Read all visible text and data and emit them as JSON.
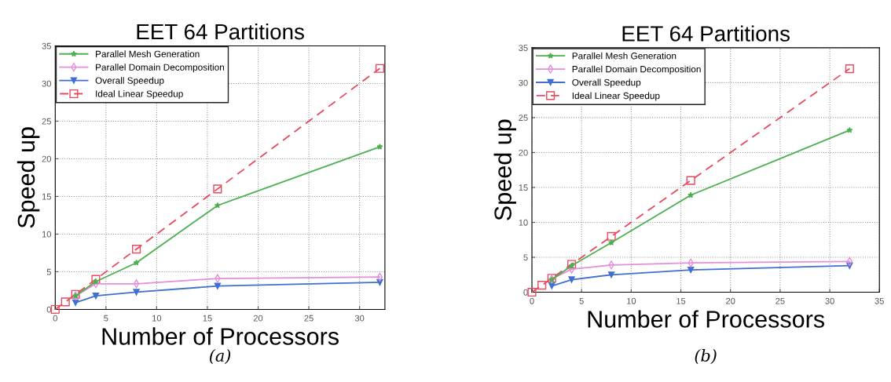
{
  "chart_data": [
    {
      "type": "line",
      "title": "EET 64 Partitions",
      "xlabel": "Number of Processors",
      "ylabel": "Speed up",
      "annotations": [
        "(a)"
      ],
      "xlim": [
        0,
        32.5
      ],
      "ylim": [
        0,
        35
      ],
      "xticks": [
        0,
        5,
        10,
        15,
        20,
        25,
        30
      ],
      "yticks": [
        0,
        5,
        10,
        15,
        20,
        25,
        30,
        35
      ],
      "grid": true,
      "legend": "top left",
      "series": [
        {
          "name": "Parallel Mesh Generation",
          "color": "#4caf50",
          "marker": "star",
          "line_style": "solid",
          "x": [
            2,
            4,
            8,
            16,
            32
          ],
          "values": [
            1.8,
            3.7,
            6.2,
            13.8,
            21.6
          ]
        },
        {
          "name": "Parallel Domain Decomposition",
          "color": "#e58fd8",
          "marker": "diamond",
          "line_style": "solid",
          "x": [
            2,
            4,
            8,
            16,
            32
          ],
          "values": [
            1.8,
            3.4,
            3.4,
            4.1,
            4.3
          ]
        },
        {
          "name": "Overall Speedup",
          "color": "#3f6fd0",
          "marker": "triangle",
          "line_style": "solid",
          "x": [
            2,
            4,
            8,
            16,
            32
          ],
          "values": [
            0.9,
            1.8,
            2.3,
            3.1,
            3.6
          ]
        },
        {
          "name": "Ideal Linear Speedup",
          "color": "#e84a5f",
          "marker": "square",
          "line_style": "dashed",
          "x": [
            0,
            1,
            2,
            4,
            8,
            16,
            32
          ],
          "values": [
            0,
            1,
            2,
            4,
            8,
            16,
            32
          ]
        }
      ]
    },
    {
      "type": "line",
      "title": "EET 64 Partitions",
      "xlabel": "Number of Processors",
      "ylabel": "Speed up",
      "annotations": [
        "(b)"
      ],
      "xlim": [
        0,
        35
      ],
      "ylim": [
        0,
        35
      ],
      "xticks": [
        0,
        5,
        10,
        15,
        20,
        25,
        30,
        35
      ],
      "yticks": [
        0,
        5,
        10,
        15,
        20,
        25,
        30,
        35
      ],
      "grid": true,
      "legend": "top left",
      "series": [
        {
          "name": "Parallel Mesh Generation",
          "color": "#4caf50",
          "marker": "star",
          "line_style": "solid",
          "x": [
            2,
            4,
            8,
            16,
            32
          ],
          "values": [
            1.8,
            3.8,
            7.1,
            13.9,
            23.2
          ]
        },
        {
          "name": "Parallel Domain Decomposition",
          "color": "#e58fd8",
          "marker": "diamond",
          "line_style": "solid",
          "x": [
            2,
            4,
            8,
            16,
            32
          ],
          "values": [
            1.9,
            3.3,
            3.9,
            4.2,
            4.4
          ]
        },
        {
          "name": "Overall Speedup",
          "color": "#3f6fd0",
          "marker": "triangle",
          "line_style": "solid",
          "x": [
            2,
            4,
            8,
            16,
            32
          ],
          "values": [
            0.9,
            1.8,
            2.5,
            3.2,
            3.8
          ]
        },
        {
          "name": "Ideal Linear Speedup",
          "color": "#e84a5f",
          "marker": "square",
          "line_style": "dashed",
          "x": [
            0,
            1,
            2,
            4,
            8,
            16,
            32
          ],
          "values": [
            0,
            1,
            2,
            4,
            8,
            16,
            32
          ]
        }
      ]
    }
  ]
}
